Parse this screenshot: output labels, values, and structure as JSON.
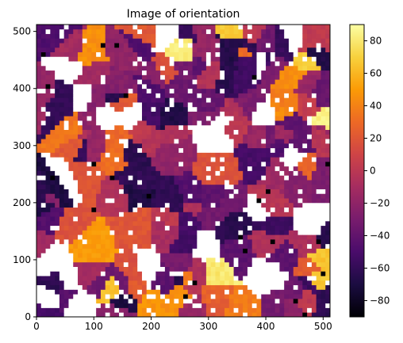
{
  "chart_data": {
    "type": "heatmap",
    "title": "Image of orientation",
    "xlabel": "",
    "ylabel": "",
    "xlim": [
      0,
      512
    ],
    "ylim": [
      0,
      512
    ],
    "x_ticks": [
      0,
      100,
      200,
      300,
      400,
      500
    ],
    "y_ticks": [
      0,
      100,
      200,
      300,
      400,
      500
    ],
    "colorbar": {
      "colormap": "inferno",
      "vmin": -90,
      "vmax": 90,
      "ticks": [
        -80,
        -60,
        -40,
        -20,
        0,
        20,
        40,
        60,
        80
      ],
      "placement": "right"
    },
    "background_color": "#ffffff",
    "grid": false,
    "legend": "none"
  },
  "colors": {
    "inferno_stops": [
      "#000004",
      "#1b0c41",
      "#4a0c6b",
      "#781c6d",
      "#a52c60",
      "#cf4446",
      "#ed6925",
      "#fb9b06",
      "#f7d13d",
      "#fcffa4"
    ]
  }
}
